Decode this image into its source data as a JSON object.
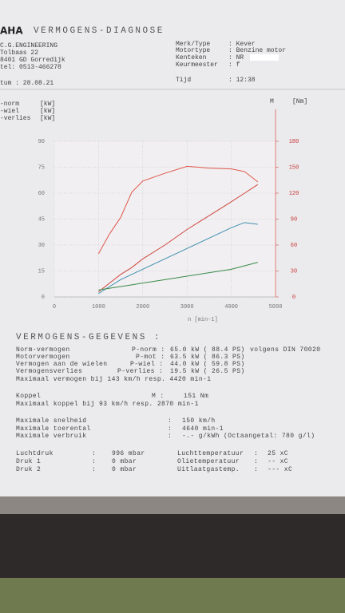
{
  "header": {
    "logo": "AHA",
    "title": "VERMOGENS-DIAGNOSE",
    "company": [
      "C.G.ENGINEERING",
      "Tolbaas 22",
      "8401 GD Gorredijk",
      "tel: 0513-466278"
    ],
    "date": "tum : 28.08.21",
    "vehicle": [
      [
        "Merk/Type",
        ": Kever"
      ],
      [
        "Motortype",
        ": Benzine motor"
      ],
      [
        "Kenteken",
        ": NR"
      ],
      [
        "Keurmeester",
        ": f"
      ],
      [
        "Tijd",
        ": 12:38"
      ]
    ]
  },
  "chart_data": {
    "type": "line",
    "x_label": "n [min-1]",
    "x": [
      1000,
      1250,
      1500,
      1750,
      2000,
      2500,
      3000,
      3500,
      4000,
      4300,
      4600
    ],
    "series": [
      {
        "name": "-norm",
        "unit": "[kW]",
        "color": "#d0463f",
        "values": [
          3,
          8,
          13,
          17,
          22,
          30,
          39,
          47,
          55,
          60,
          65
        ]
      },
      {
        "name": "-wiel",
        "unit": "[kW]",
        "color": "#3f8fb0",
        "values": [
          2,
          6,
          10,
          13,
          16,
          22,
          28,
          34,
          40,
          43,
          42
        ]
      },
      {
        "name": "-verlies",
        "unit": "[kW]",
        "color": "#3a8a4a",
        "values": [
          4,
          5,
          6,
          7,
          8,
          10,
          12,
          14,
          16,
          18,
          20
        ]
      },
      {
        "name": "M",
        "unit": "[Nm]",
        "color": "#e0574c",
        "axis": "y2",
        "values": [
          50,
          73,
          92,
          121,
          134,
          143,
          151,
          149,
          148,
          145,
          133
        ]
      }
    ],
    "xlim": [
      0,
      5000
    ],
    "xticks": [
      0,
      1000,
      2000,
      3000,
      4000,
      5000
    ],
    "ylim": [
      0,
      90
    ],
    "yticks": [
      0,
      15,
      30,
      45,
      60,
      75,
      90
    ],
    "y2lim": [
      0,
      180
    ],
    "y2ticks": [
      0,
      30,
      60,
      90,
      120,
      150,
      180
    ],
    "grid": true
  },
  "results": {
    "title": "VERMOGENS-GEGEVENS :",
    "rows": [
      {
        "color": "#c8393a",
        "cells": [
          "Norm-vermogen",
          "P-norm :",
          "65.0 kW ( 88.4 PS)",
          "volgens DIN 70020"
        ]
      },
      {
        "color": "#c8393a",
        "cells": [
          "Motorvermogen",
          "P-mot :",
          "63.5 kW ( 86.3 PS)"
        ]
      },
      {
        "color": "#3f8fb0",
        "cells": [
          "Vermogen aan de wielen",
          "P-wiel :",
          "44.0 kW ( 59.8 PS)"
        ]
      },
      {
        "color": "#3a8a4a",
        "cells": [
          "Vermogensverlies",
          "P-verlies :",
          "19.5 kW ( 26.5 PS)"
        ]
      },
      {
        "color": "#444444",
        "cells": [
          "Maximaal vermogen bij 143 km/h resp. 4420 min-1"
        ]
      },
      {
        "color": "#c8393a",
        "cells": [
          "Koppel",
          "M :",
          "151 Nm"
        ]
      },
      {
        "color": "#444444",
        "cells": [
          "Maximaal koppel bij  93 km/h resp.  2870 min-1"
        ]
      },
      {
        "color": "#444444",
        "cells": [
          "Maximale snelheid",
          ":",
          "150 km/h"
        ]
      },
      {
        "color": "#444444",
        "cells": [
          "Maximale toerental",
          ":",
          "4640 min-1"
        ]
      },
      {
        "color": "#444444",
        "cells": [
          "Maximale verbruik",
          ":",
          "-.- g/kWh (Octaangetal: 780 g/l)"
        ]
      },
      {
        "color": "#777777",
        "cells": [
          "Luchtdruk",
          ":",
          "996 mbar",
          "Luchttemperatuur",
          ":",
          "25 xC"
        ]
      },
      {
        "color": "#777777",
        "cells": [
          "Druk 1",
          ":",
          "0 mbar",
          "Olietemperatuur",
          ":",
          "-- xC"
        ]
      },
      {
        "color": "#777777",
        "cells": [
          "Druk 2",
          ":",
          "0 mbar",
          "Uitlaatgastemp.",
          ":",
          "--- xC"
        ]
      }
    ]
  }
}
